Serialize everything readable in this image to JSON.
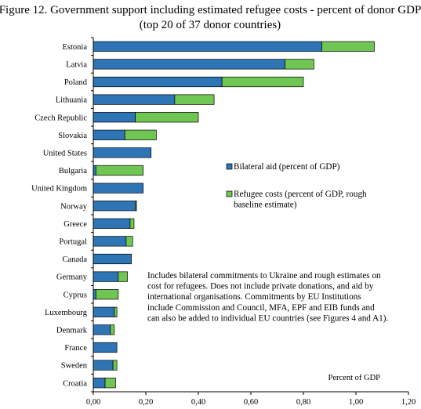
{
  "chart_data": {
    "type": "bar",
    "orientation": "horizontal",
    "stacked": true,
    "title_lines": [
      "Figure 12. Government support including estimated refugee costs - percent of donor GDP",
      "(top 20 of 37 donor countries)"
    ],
    "categories": [
      "Estonia",
      "Latvia",
      "Poland",
      "Lithuania",
      "Czech Republic",
      "Slovakia",
      "United States",
      "Bulgaria",
      "United Kingdom",
      "Norway",
      "Greece",
      "Portugal",
      "Canada",
      "Germany",
      "Cyprus",
      "Luxembourg",
      "Denmark",
      "France",
      "Sweden",
      "Croatia"
    ],
    "series": [
      {
        "name": "Bilateral aid (percent of GDP)",
        "color": "#2e75b6",
        "values": [
          0.87,
          0.73,
          0.49,
          0.31,
          0.16,
          0.12,
          0.22,
          0.01,
          0.19,
          0.16,
          0.14,
          0.125,
          0.145,
          0.095,
          0.01,
          0.08,
          0.065,
          0.09,
          0.075,
          0.045
        ]
      },
      {
        "name": "Refugee costs (percent of GDP, rough baseline estimate)",
        "color": "#70c652",
        "values": [
          0.2,
          0.11,
          0.31,
          0.15,
          0.24,
          0.12,
          0.0,
          0.18,
          0.0,
          0.005,
          0.015,
          0.025,
          0.0,
          0.035,
          0.085,
          0.01,
          0.015,
          0.0,
          0.015,
          0.04
        ]
      }
    ],
    "legend": {
      "position": "right-middle",
      "items": [
        {
          "lines": [
            "Bilateral aid (percent of GDP)"
          ]
        },
        {
          "lines": [
            "Refugee costs (percent of GDP, rough",
            "baseline estimate)"
          ]
        }
      ]
    },
    "note_lines": [
      "Includes bilateral commitments to Ukraine and rough estimates on",
      "cost for refugees. Does not include private donations, and aid by",
      "international organisations. Commitments by EU Institutions",
      "include Commission and Council, MFA, EPF and EIB funds and",
      "can also be added to individual EU countries (see Figures 4 and A1)."
    ],
    "xlabel": "Percent of GDP",
    "xlim": [
      0,
      1.2
    ],
    "xticks": [
      0,
      0.2,
      0.4,
      0.6,
      0.8,
      1.0,
      1.2
    ],
    "xtick_labels": [
      "0,00",
      "0,20",
      "0,40",
      "0,60",
      "0,80",
      "1,00",
      "1,20"
    ],
    "grid": false
  }
}
